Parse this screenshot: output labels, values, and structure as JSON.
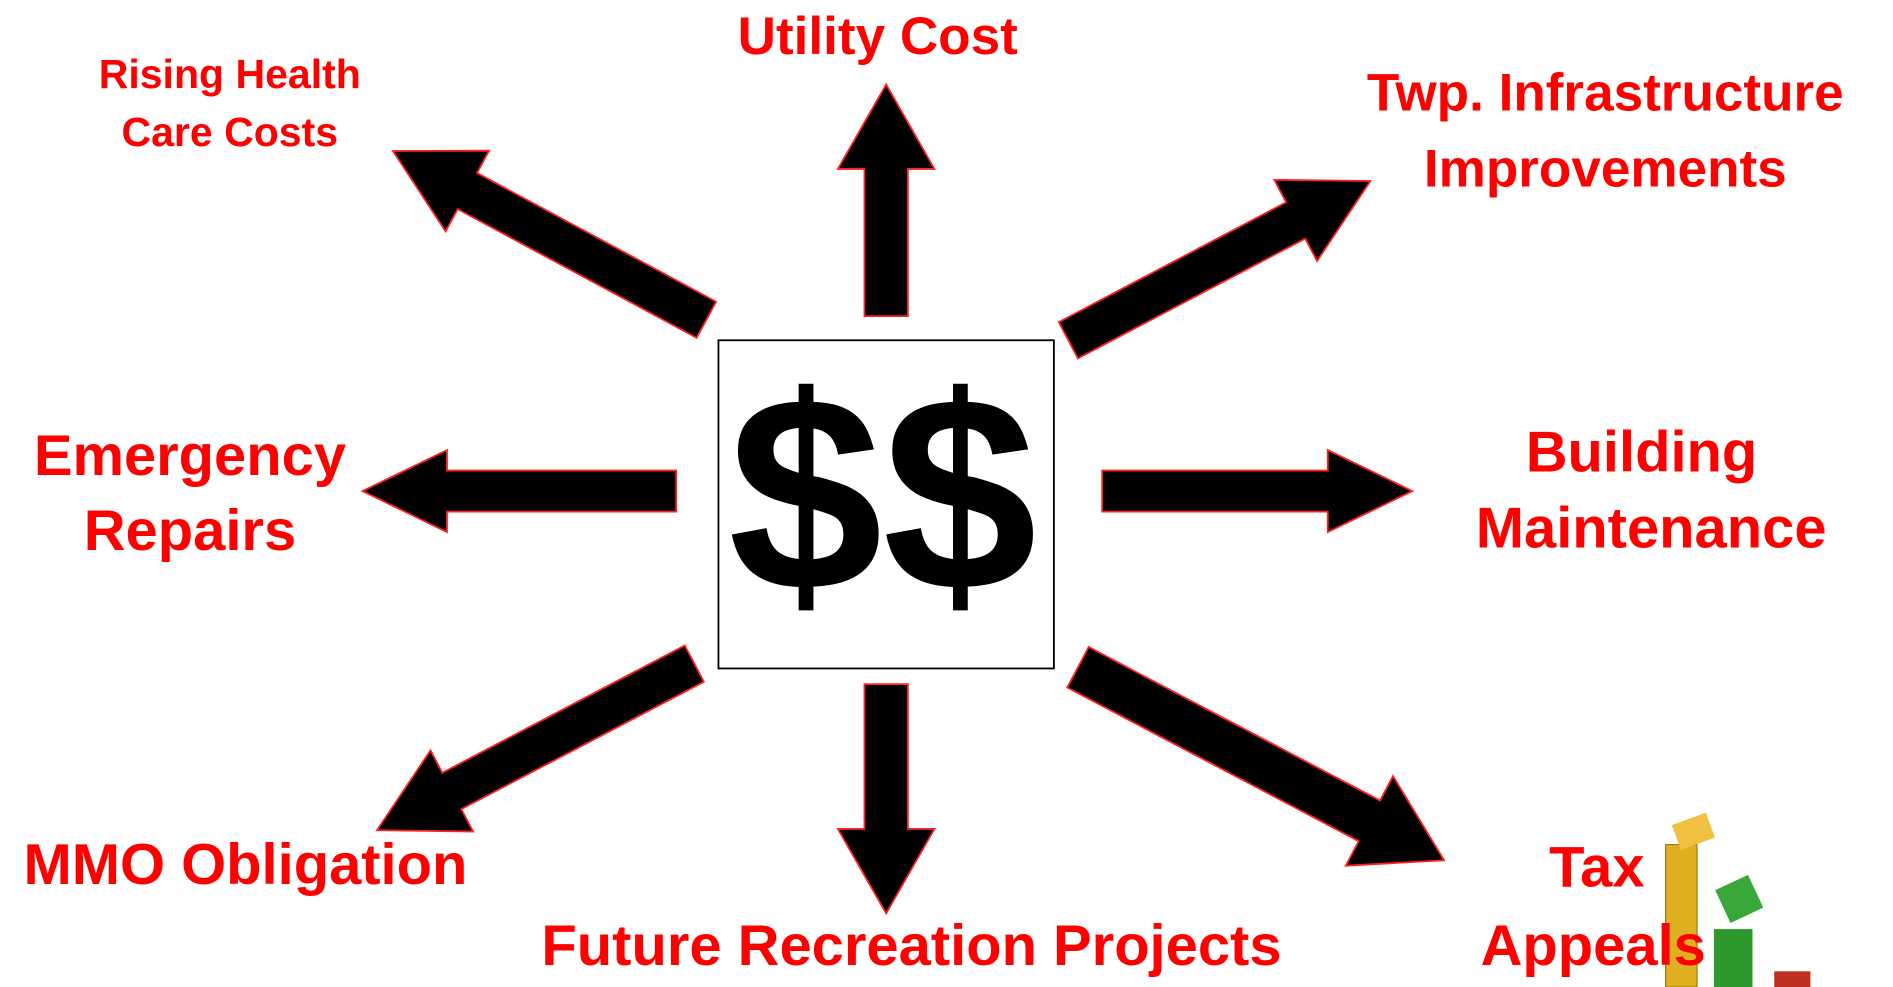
{
  "center": {
    "label": "$$"
  },
  "nodes": [
    {
      "lines": [
        "Utility Cost"
      ]
    },
    {
      "lines": [
        "Rising Health",
        "Care Costs"
      ]
    },
    {
      "lines": [
        "Twp. Infrastructure",
        "Improvements"
      ]
    },
    {
      "lines": [
        "Emergency",
        "Repairs"
      ]
    },
    {
      "lines": [
        "Building",
        "Maintenance"
      ]
    },
    {
      "lines": [
        "MMO Obligation"
      ]
    },
    {
      "lines": [
        "Future Recreation Projects"
      ]
    },
    {
      "lines": [
        "Tax",
        "Appeals"
      ]
    }
  ]
}
